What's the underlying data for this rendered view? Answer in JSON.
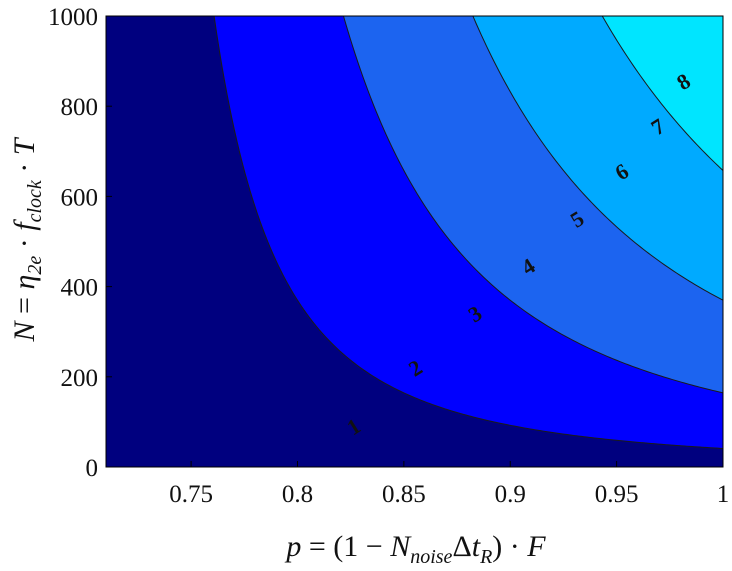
{
  "chart_data": {
    "type": "contourf",
    "x": {
      "min": 0.71,
      "max": 1.0,
      "ticks": [
        0.75,
        0.8,
        0.85,
        0.9,
        0.95,
        1
      ],
      "tick_labels": [
        "0.75",
        "0.8",
        "0.85",
        "0.9",
        "0.95",
        "1"
      ]
    },
    "y": {
      "min": 0,
      "max": 1000,
      "ticks": [
        0,
        200,
        400,
        600,
        800,
        1000
      ],
      "tick_labels": [
        "0",
        "200",
        "400",
        "600",
        "800",
        "1000"
      ]
    },
    "xlabel": "p = (1 − N_noise Δt_R) · F",
    "ylabel": "N = η_2e · f_clock · T",
    "levels": [
      1,
      2,
      3,
      4,
      5,
      6,
      7,
      8
    ],
    "colors": [
      "#00007f",
      "#0000ff",
      "#1c64f0",
      "#00aaff",
      "#00e5ff",
      "#4dffb4",
      "#b3ff4d",
      "#ffd700",
      "#ff7f00",
      "#e60000",
      "#7f0000"
    ],
    "contour_labels": [
      {
        "text": "1",
        "x": 0.827,
        "y": 85
      },
      {
        "text": "2",
        "x": 0.856,
        "y": 215
      },
      {
        "text": "3",
        "x": 0.884,
        "y": 335
      },
      {
        "text": "4",
        "x": 0.909,
        "y": 440
      },
      {
        "text": "5",
        "x": 0.932,
        "y": 545
      },
      {
        "text": "6",
        "x": 0.953,
        "y": 650
      },
      {
        "text": "7",
        "x": 0.97,
        "y": 750
      },
      {
        "text": "8",
        "x": 0.982,
        "y": 850
      }
    ]
  }
}
